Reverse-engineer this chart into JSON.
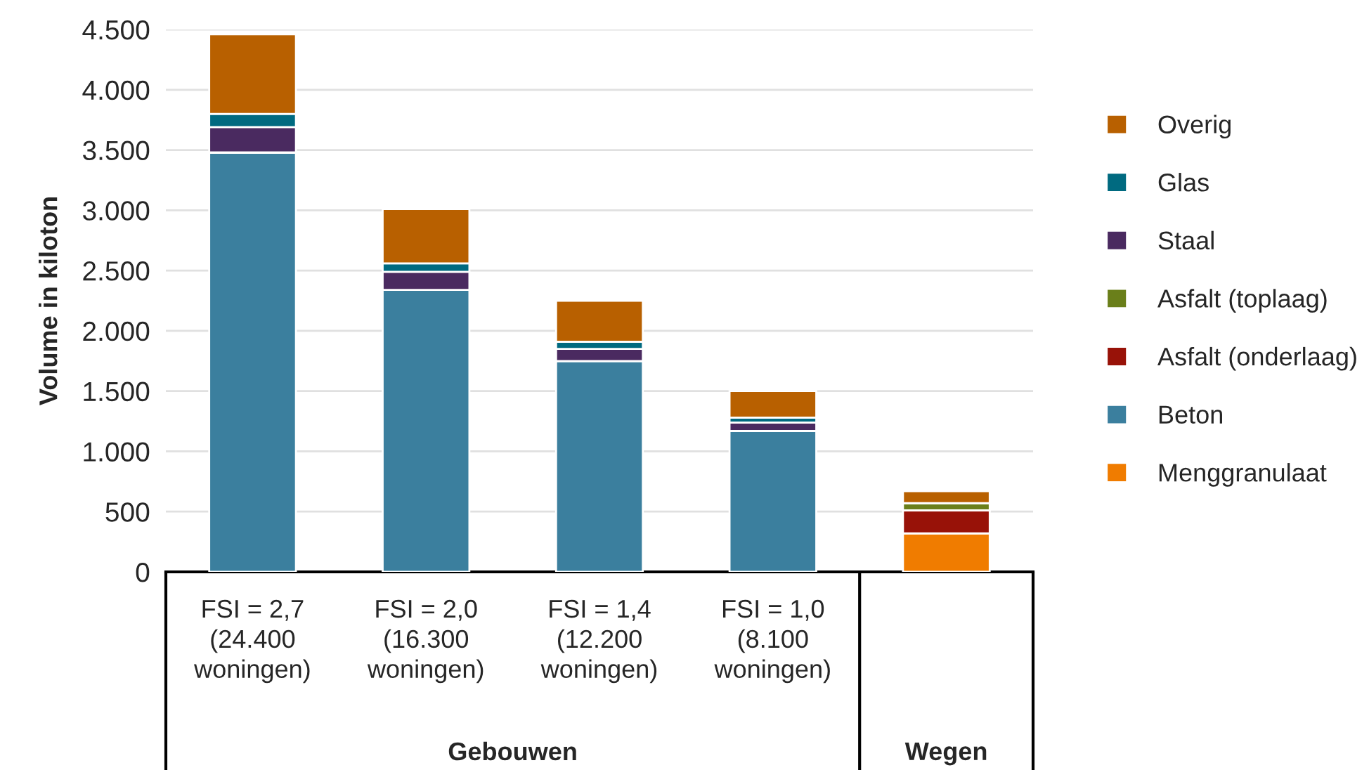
{
  "chart_data": {
    "type": "bar",
    "stacked": true,
    "ylabel": "Volume in kiloton",
    "categories": [
      "FSI = 2,7\n(24.400\nwoningen)",
      "FSI = 2,0\n(16.300\nwoningen)",
      "FSI = 1,4\n(12.200\nwoningen)",
      "FSI = 1,0\n(8.100\nwoningen)",
      null
    ],
    "series": [
      {
        "name": "Menggranulaat",
        "color": "#f07c00",
        "values": [
          0,
          0,
          0,
          0,
          320
        ]
      },
      {
        "name": "Beton",
        "color": "#3b7f9e",
        "values": [
          3480,
          2340,
          1750,
          1170,
          0
        ]
      },
      {
        "name": "Asfalt (onderlaag)",
        "color": "#981208",
        "values": [
          0,
          0,
          0,
          0,
          190
        ]
      },
      {
        "name": "Asfalt (toplaag)",
        "color": "#6a7f1a",
        "values": [
          0,
          0,
          0,
          0,
          60
        ]
      },
      {
        "name": "Staal",
        "color": "#4a2a60",
        "values": [
          210,
          150,
          100,
          70,
          0
        ]
      },
      {
        "name": "Glas",
        "color": "#006a80",
        "values": [
          110,
          70,
          60,
          40,
          0
        ]
      },
      {
        "name": "Overig",
        "color": "#b86000",
        "values": [
          660,
          450,
          340,
          220,
          100
        ]
      }
    ],
    "annotations": [
      "Gebouwen",
      "Wegen"
    ],
    "ylim": [
      0,
      4500
    ],
    "yticks": [
      0,
      500,
      {
        "value": 1000,
        "label": "1.000"
      },
      {
        "value": 1500,
        "label": "1.500"
      },
      {
        "value": 2000,
        "label": "2.000"
      },
      {
        "value": 2500,
        "label": "2.500"
      },
      {
        "value": 3000,
        "label": "3.000"
      },
      {
        "value": 3500,
        "label": "3.500"
      },
      {
        "value": 4000,
        "label": "4.000"
      },
      {
        "value": 4500,
        "label": "4.500"
      }
    ],
    "grid": "y",
    "legend": "right"
  }
}
